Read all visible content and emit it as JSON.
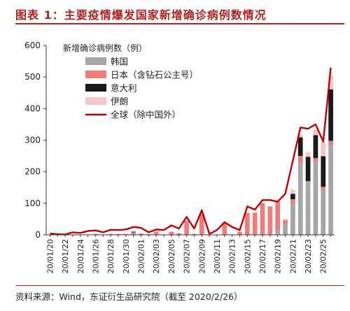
{
  "title": "图表 1：主要疫情爆发国家新增确诊病例数情况",
  "source": "资料来源：Wind，东证衍生品研究院（截至 2020/2/26）",
  "chart_data": {
    "type": "bar",
    "stacked": true,
    "ylabel": "新增确诊病例数（例）",
    "ylim": [
      0,
      600
    ],
    "yticks": [
      0,
      100,
      200,
      300,
      400,
      500,
      600
    ],
    "x": [
      "20/01/20",
      "20/01/21",
      "20/01/22",
      "20/01/23",
      "20/01/24",
      "20/01/25",
      "20/01/26",
      "20/01/27",
      "20/01/28",
      "20/01/29",
      "20/01/30",
      "20/01/31",
      "20/02/01",
      "20/02/02",
      "20/02/03",
      "20/02/04",
      "20/02/05",
      "20/02/06",
      "20/02/07",
      "20/02/08",
      "20/02/09",
      "20/02/10",
      "20/02/11",
      "20/02/12",
      "20/02/13",
      "20/02/14",
      "20/02/15",
      "20/02/16",
      "20/02/17",
      "20/02/18",
      "20/02/19",
      "20/02/20",
      "20/02/21",
      "20/02/22",
      "20/02/23",
      "20/02/24",
      "20/02/25",
      "20/02/26"
    ],
    "xtick_labels": [
      "20/01/20",
      "20/01/22",
      "20/01/24",
      "20/01/26",
      "20/01/28",
      "20/01/30",
      "20/02/01",
      "20/02/03",
      "20/02/05",
      "20/02/07",
      "20/02/09",
      "20/02/11",
      "20/02/13",
      "20/02/15",
      "20/02/17",
      "20/02/19",
      "20/02/21",
      "20/02/23",
      "20/02/25"
    ],
    "legend_position": "top-left",
    "series": [
      {
        "name": "韩国",
        "type": "bar",
        "color": "#a6a6a6",
        "values": [
          1,
          0,
          0,
          0,
          1,
          0,
          1,
          0,
          0,
          0,
          0,
          4,
          1,
          3,
          0,
          1,
          0,
          0,
          1,
          0,
          0,
          0,
          0,
          0,
          0,
          0,
          0,
          0,
          0,
          1,
          15,
          34,
          100,
          229,
          169,
          231,
          144,
          284
        ]
      },
      {
        "name": "日本（含钻石公主号）",
        "type": "bar",
        "color": "#f07b7b",
        "values": [
          0,
          0,
          0,
          0,
          0,
          1,
          2,
          0,
          3,
          3,
          3,
          4,
          3,
          0,
          10,
          0,
          10,
          5,
          41,
          3,
          65,
          0,
          0,
          39,
          0,
          10,
          70,
          70,
          100,
          89,
          90,
          13,
          13,
          21,
          1,
          12,
          8,
          14
        ]
      },
      {
        "name": "意大利",
        "type": "bar",
        "color": "#1a1a1a",
        "values": [
          0,
          0,
          0,
          0,
          0,
          0,
          0,
          0,
          0,
          0,
          0,
          2,
          0,
          0,
          0,
          0,
          0,
          0,
          1,
          0,
          0,
          0,
          0,
          0,
          0,
          0,
          0,
          0,
          0,
          0,
          0,
          0,
          17,
          59,
          77,
          73,
          97,
          163
        ]
      },
      {
        "name": "伊朗",
        "type": "bar",
        "color": "#f7c6c9",
        "values": [
          0,
          0,
          0,
          0,
          0,
          0,
          0,
          0,
          0,
          0,
          0,
          0,
          0,
          0,
          0,
          0,
          0,
          0,
          0,
          0,
          0,
          0,
          0,
          0,
          0,
          0,
          0,
          0,
          0,
          0,
          2,
          3,
          13,
          10,
          15,
          18,
          44,
          45
        ]
      },
      {
        "name": "全球（除中国外）",
        "type": "line",
        "color": "#c00000",
        "values": [
          4,
          2,
          1,
          8,
          6,
          12,
          14,
          8,
          16,
          15,
          17,
          25,
          22,
          8,
          17,
          15,
          30,
          20,
          57,
          20,
          78,
          3,
          15,
          40,
          25,
          15,
          90,
          80,
          110,
          110,
          105,
          130,
          235,
          340,
          336,
          350,
          295,
          530
        ]
      }
    ]
  }
}
